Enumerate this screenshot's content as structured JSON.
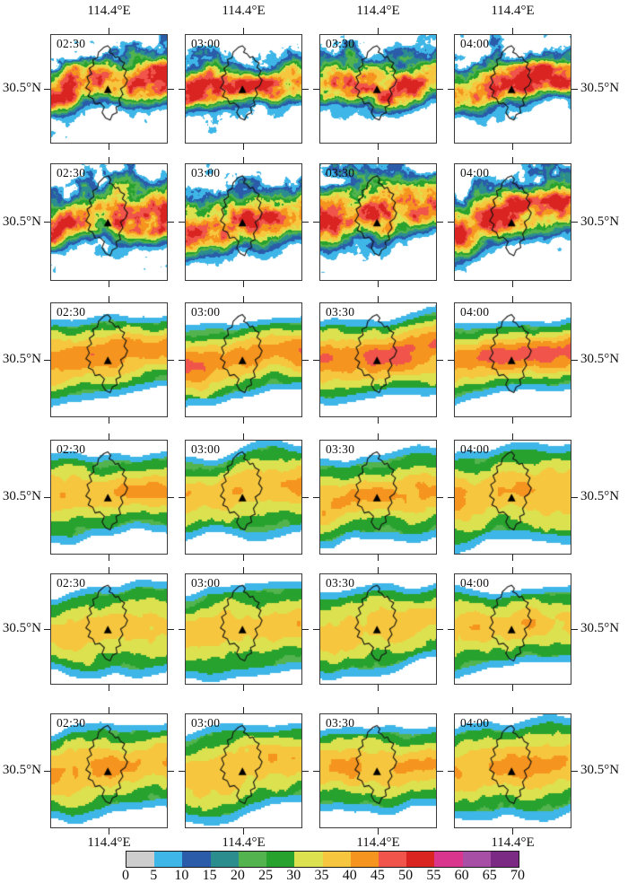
{
  "figure": {
    "lon_label": "114.4°E",
    "lat_label": "30.5°N",
    "times": [
      "02:30",
      "03:00",
      "03:30",
      "04:00"
    ],
    "grid": {
      "rows": 6,
      "cols": 4
    }
  },
  "colorbar": {
    "tick_labels": [
      "0",
      "5",
      "10",
      "15",
      "20",
      "25",
      "30",
      "35",
      "40",
      "45",
      "50",
      "55",
      "60",
      "65",
      "70"
    ],
    "colors": [
      "#cdcdcd",
      "#3fb6e8",
      "#2a5caa",
      "#2b8d8e",
      "#52b34f",
      "#28a22e",
      "#dce14f",
      "#f6c73e",
      "#f5941e",
      "#f0544a",
      "#d92422",
      "#d9348e",
      "#a74fa4",
      "#7b2b83"
    ]
  },
  "overlays": {
    "marker": "filled-triangle",
    "boundary": "administrative-boundary-outline"
  },
  "chart_data": {
    "type": "heatmap",
    "layout": "6x4 grid of radar-reflectivity map panels; columns are times, rows are different reflectivity fields; shared colorbar at bottom",
    "column_times": [
      "02:30",
      "03:00",
      "03:30",
      "04:00"
    ],
    "x_tick_label": "114.4°E",
    "y_tick_label": "30.5°N",
    "rows": [
      {
        "index": 1,
        "texture": "speckled"
      },
      {
        "index": 2,
        "texture": "speckled"
      },
      {
        "index": 3,
        "texture": "smooth"
      },
      {
        "index": 4,
        "texture": "smooth"
      },
      {
        "index": 5,
        "texture": "smooth"
      },
      {
        "index": 6,
        "texture": "smooth"
      }
    ],
    "colorbar": {
      "min": 0,
      "max": 70,
      "step": 5,
      "tick_labels": [
        "0",
        "5",
        "10",
        "15",
        "20",
        "25",
        "30",
        "35",
        "40",
        "45",
        "50",
        "55",
        "60",
        "65",
        "70"
      ],
      "colors": [
        "#cdcdcd",
        "#3fb6e8",
        "#2a5caa",
        "#2b8d8e",
        "#52b34f",
        "#28a22e",
        "#dce14f",
        "#f6c73e",
        "#f5941e",
        "#f0544a",
        "#d92422",
        "#d9348e",
        "#a74fa4",
        "#7b2b83"
      ],
      "position": "bottom"
    },
    "overlays": [
      "black filled triangle marker near panel center",
      "irregular black boundary outline around center"
    ]
  }
}
